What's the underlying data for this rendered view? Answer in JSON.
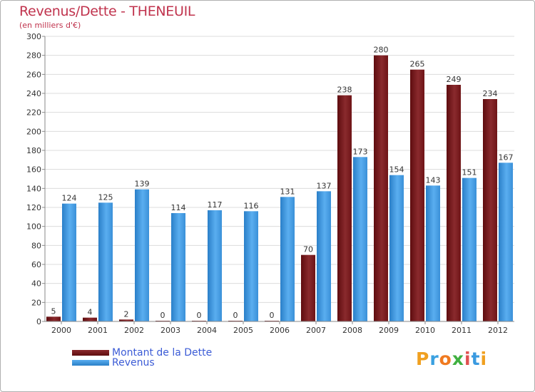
{
  "chart_data": {
    "type": "bar",
    "title": "Revenus/Dette - THENEUIL",
    "subtitle": "(en milliers d'€)",
    "xlabel": "",
    "ylabel": "",
    "ylim": [
      0,
      300
    ],
    "ytick_step": 20,
    "grid": true,
    "categories": [
      "2000",
      "2001",
      "2002",
      "2003",
      "2004",
      "2005",
      "2006",
      "2007",
      "2008",
      "2009",
      "2010",
      "2011",
      "2012"
    ],
    "series": [
      {
        "name": "Montant de la Dette",
        "color": "#7a1518",
        "values": [
          5,
          4,
          2,
          0,
          0,
          0,
          0,
          70,
          238,
          280,
          265,
          249,
          234
        ]
      },
      {
        "name": "Revenus",
        "color": "#3d95dc",
        "values": [
          124,
          125,
          139,
          114,
          117,
          116,
          131,
          137,
          173,
          154,
          143,
          151,
          167
        ]
      }
    ],
    "legend_position": "bottom-left"
  },
  "logo": {
    "text": "Proxiti"
  }
}
